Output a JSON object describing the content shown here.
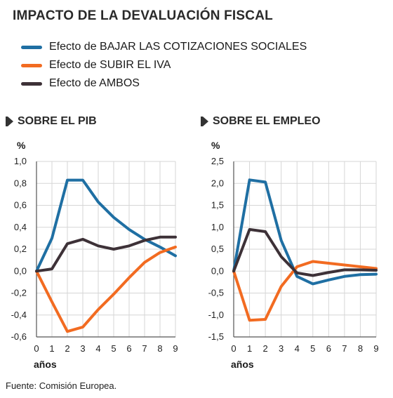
{
  "title": "IMPACTO DE LA DEVALUACIÓN FISCAL",
  "legend": [
    {
      "label": "Efecto de BAJAR LAS COTIZACIONES SOCIALES",
      "color": "#1f6fa3"
    },
    {
      "label": "Efecto de SUBIR EL IVA",
      "color": "#f26b21"
    },
    {
      "label": "Efecto de AMBOS",
      "color": "#3d3137"
    }
  ],
  "source": "Fuente: Comisión Europea.",
  "chart_data": [
    {
      "type": "line",
      "title": "SOBRE EL PIB",
      "ylabel": "%",
      "xlabel": "años",
      "x": [
        0,
        1,
        2,
        3,
        4,
        5,
        6,
        7,
        8,
        9
      ],
      "ylim": [
        -0.6,
        1.0
      ],
      "yticks": [
        1.0,
        0.8,
        0.6,
        0.4,
        0.2,
        0.0,
        -0.2,
        -0.4,
        -0.6
      ],
      "ytick_labels": [
        "1,0",
        "0,8",
        "0,6",
        "0,4",
        "0,2",
        "0,0",
        "-0,2",
        "-0,4",
        "-0,6"
      ],
      "grid": true,
      "series": [
        {
          "name": "Efecto de BAJAR LAS COTIZACIONES SOCIALES",
          "color": "#1f6fa3",
          "values": [
            0.0,
            0.3,
            0.83,
            0.83,
            0.63,
            0.49,
            0.38,
            0.29,
            0.22,
            0.14
          ]
        },
        {
          "name": "Efecto de SUBIR EL IVA",
          "color": "#f26b21",
          "values": [
            0.0,
            -0.28,
            -0.55,
            -0.51,
            -0.35,
            -0.21,
            -0.06,
            0.08,
            0.17,
            0.22
          ]
        },
        {
          "name": "Efecto de AMBOS",
          "color": "#3d3137",
          "values": [
            0.0,
            0.02,
            0.25,
            0.29,
            0.23,
            0.2,
            0.23,
            0.28,
            0.31,
            0.31
          ]
        }
      ]
    },
    {
      "type": "line",
      "title": "SOBRE EL EMPLEO",
      "ylabel": "%",
      "xlabel": "años",
      "x": [
        0,
        1,
        2,
        3,
        4,
        5,
        6,
        7,
        8,
        9
      ],
      "ylim": [
        -1.5,
        2.5
      ],
      "yticks": [
        2.5,
        2.0,
        1.5,
        1.0,
        0.5,
        0.0,
        -0.5,
        -1.0,
        -1.5
      ],
      "ytick_labels": [
        "2,5",
        "2,0",
        "1,5",
        "1,0",
        "0,5",
        "0,0",
        "-0,5",
        "-1,0",
        "-1,5"
      ],
      "grid": true,
      "series": [
        {
          "name": "Efecto de BAJAR LAS COTIZACIONES SOCIALES",
          "color": "#1f6fa3",
          "values": [
            0.0,
            2.08,
            2.03,
            0.7,
            -0.12,
            -0.29,
            -0.2,
            -0.12,
            -0.08,
            -0.07
          ]
        },
        {
          "name": "Efecto de SUBIR EL IVA",
          "color": "#f26b21",
          "values": [
            0.0,
            -1.12,
            -1.1,
            -0.35,
            0.1,
            0.22,
            0.18,
            0.14,
            0.1,
            0.06
          ]
        },
        {
          "name": "Efecto de AMBOS",
          "color": "#3d3137",
          "values": [
            0.0,
            0.95,
            0.9,
            0.33,
            -0.04,
            -0.1,
            -0.03,
            0.03,
            0.03,
            0.02
          ]
        }
      ]
    }
  ]
}
